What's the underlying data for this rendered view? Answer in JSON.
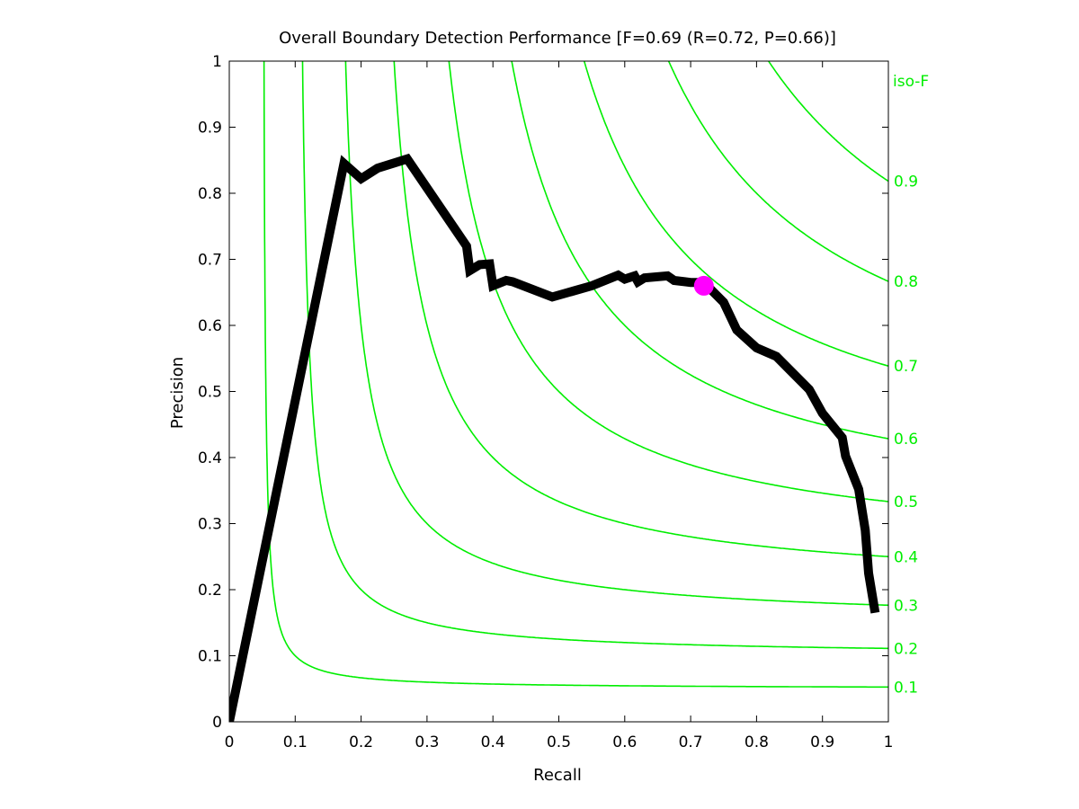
{
  "chart_data": {
    "type": "line",
    "title": "Overall Boundary Detection Performance [F=0.69 (R=0.72, P=0.66)]",
    "xlabel": "Recall",
    "ylabel": "Precision",
    "xlim": [
      0,
      1
    ],
    "ylim": [
      0,
      1
    ],
    "x_ticks": [
      "0",
      "0.1",
      "0.2",
      "0.3",
      "0.4",
      "0.5",
      "0.6",
      "0.7",
      "0.8",
      "0.9",
      "1"
    ],
    "y_ticks": [
      "0",
      "0.1",
      "0.2",
      "0.3",
      "0.4",
      "0.5",
      "0.6",
      "0.7",
      "0.8",
      "0.9",
      "1"
    ],
    "grid": false,
    "iso_f": {
      "legend_label": "iso-F",
      "values": [
        0.1,
        0.2,
        0.3,
        0.4,
        0.5,
        0.6,
        0.7,
        0.8,
        0.9
      ],
      "labels": [
        "0.1",
        "0.2",
        "0.3",
        "0.4",
        "0.5",
        "0.6",
        "0.7",
        "0.8",
        "0.9"
      ],
      "color": "#00ee00"
    },
    "series": [
      {
        "color": "#000000",
        "x": [
          0.0,
          0.174,
          0.2,
          0.225,
          0.27,
          0.36,
          0.365,
          0.38,
          0.395,
          0.4,
          0.42,
          0.43,
          0.49,
          0.55,
          0.59,
          0.6,
          0.615,
          0.62,
          0.63,
          0.665,
          0.675,
          0.7,
          0.72,
          0.75,
          0.77,
          0.8,
          0.83,
          0.85,
          0.88,
          0.9,
          0.93,
          0.935,
          0.955,
          0.965,
          0.97,
          0.98
        ],
        "y": [
          0.0,
          0.845,
          0.822,
          0.838,
          0.852,
          0.72,
          0.683,
          0.692,
          0.693,
          0.66,
          0.668,
          0.666,
          0.643,
          0.66,
          0.676,
          0.67,
          0.675,
          0.666,
          0.672,
          0.675,
          0.668,
          0.665,
          0.665,
          0.635,
          0.593,
          0.566,
          0.553,
          0.533,
          0.503,
          0.467,
          0.43,
          0.402,
          0.352,
          0.29,
          0.225,
          0.165
        ]
      }
    ],
    "best_point": {
      "recall": 0.72,
      "precision": 0.66,
      "f": 0.69,
      "color": "#ff00ff"
    }
  }
}
